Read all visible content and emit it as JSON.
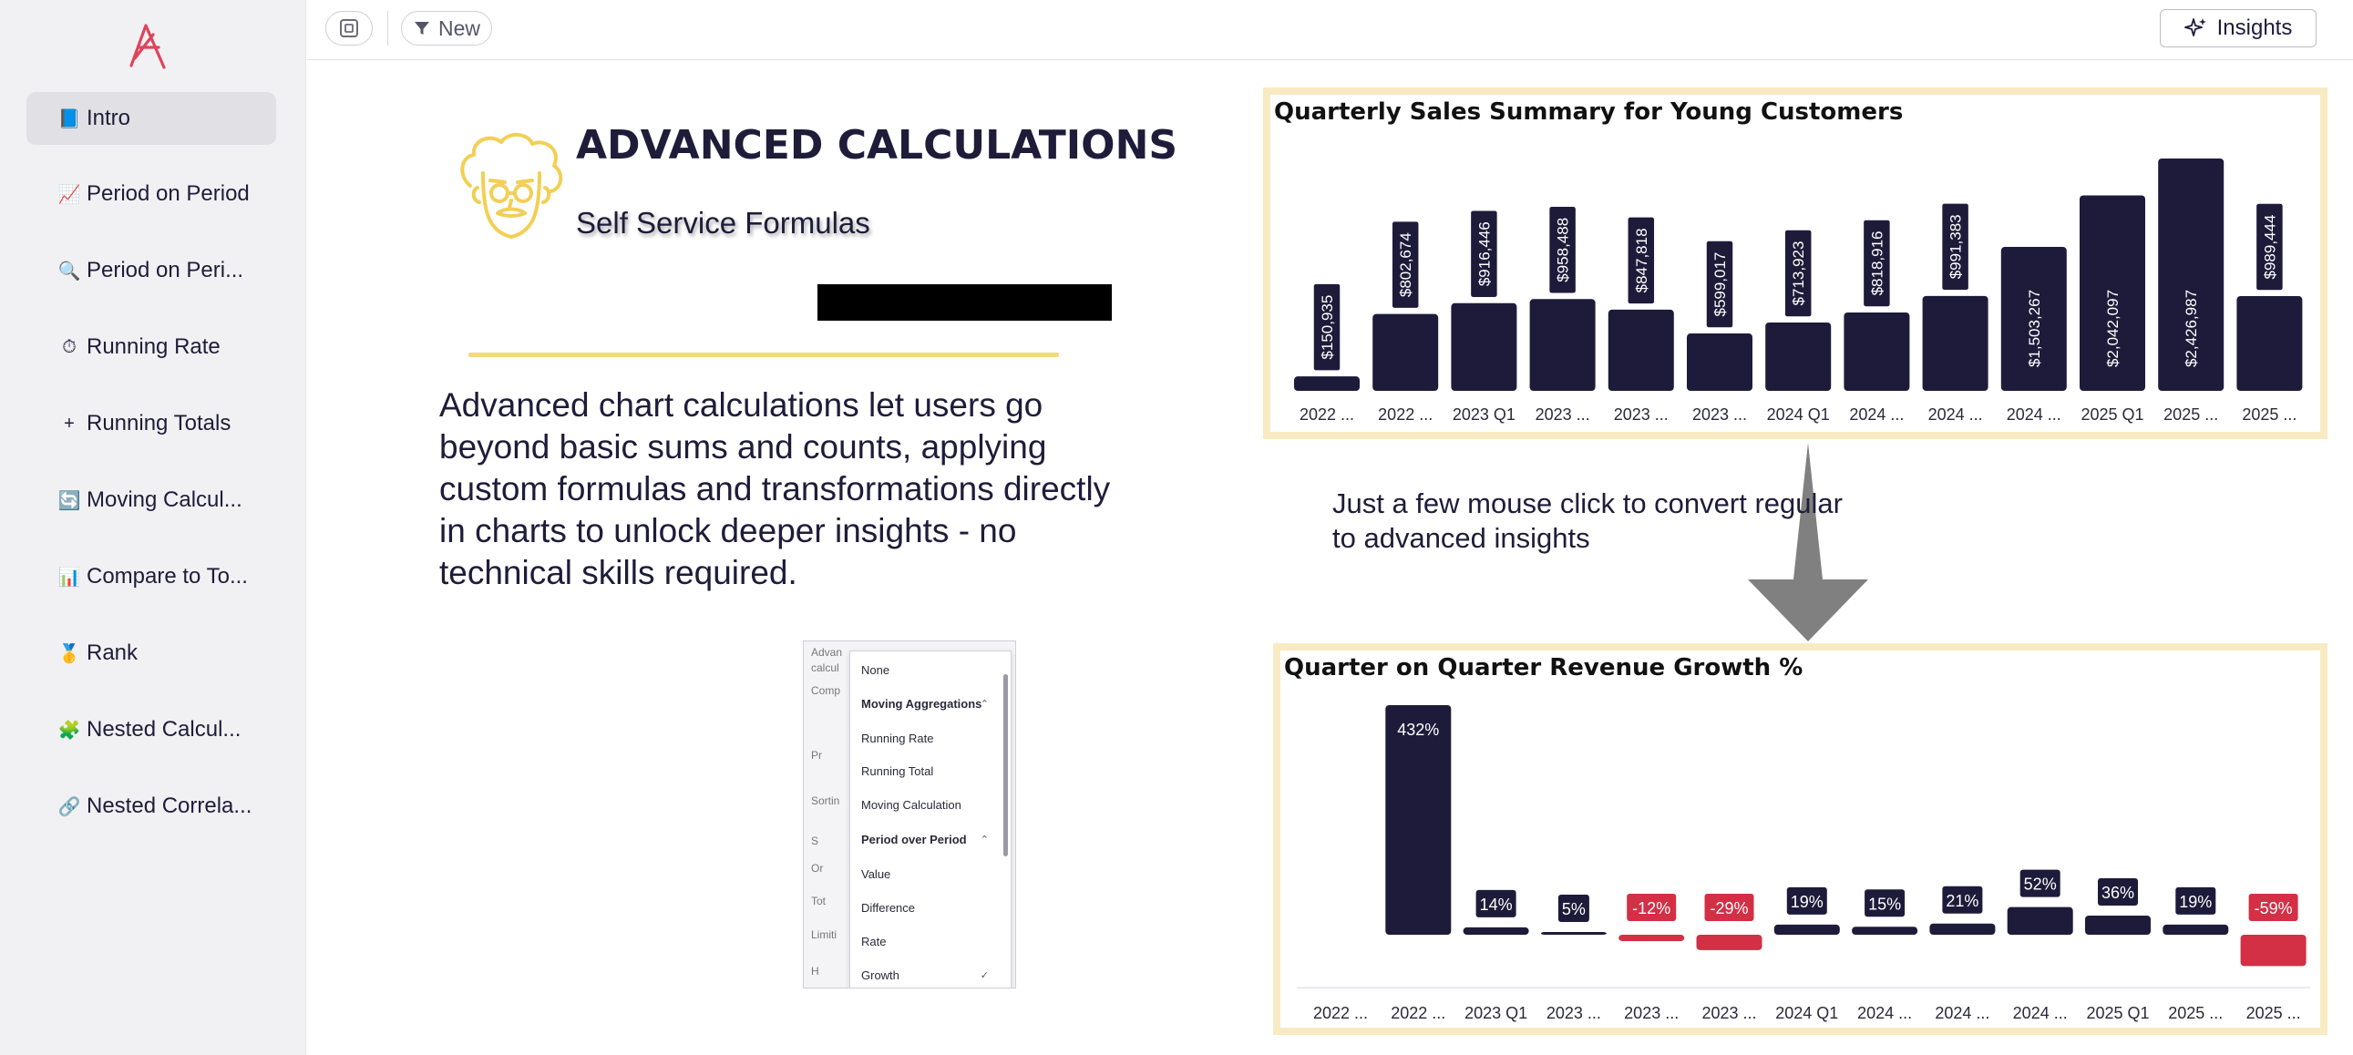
{
  "sidebar": {
    "items": [
      {
        "icon": "📘",
        "label": "Intro",
        "active": true
      },
      {
        "icon": "📈",
        "label": "Period on Period"
      },
      {
        "icon": "🔍",
        "label": "Period on Peri..."
      },
      {
        "icon": "⏱",
        "label": "Running Rate"
      },
      {
        "icon": "+",
        "label": "Running Totals"
      },
      {
        "icon": "🔄",
        "label": "Moving Calcul..."
      },
      {
        "icon": "📊",
        "label": "Compare to To..."
      },
      {
        "icon": "🥇",
        "label": "Rank"
      },
      {
        "icon": "🧩",
        "label": "Nested Calcul..."
      },
      {
        "icon": "🔗",
        "label": "Nested Correla..."
      }
    ]
  },
  "toolbar": {
    "new_label": "New",
    "insights_label": "Insights"
  },
  "intro": {
    "title": "ADVANCED CALCULATIONS",
    "subtitle": "Self Service Formulas",
    "description": "Advanced chart calculations let users go beyond basic sums and counts, applying custom formulas and transformations directly in charts to unlock deeper insights - no technical skills required."
  },
  "dropdown_screenshot": {
    "background_labels": [
      "Advan",
      "calcul",
      "Comp",
      "Pr",
      "Sortin",
      "S",
      "Or",
      "Tot",
      "Limiti",
      "H"
    ],
    "options": [
      {
        "label": "None"
      },
      {
        "label": "Moving Aggregations",
        "header": true
      },
      {
        "label": "Running Rate"
      },
      {
        "label": "Running Total"
      },
      {
        "label": "Moving Calculation"
      },
      {
        "label": "Period over Period",
        "header": true
      },
      {
        "label": "Value"
      },
      {
        "label": "Difference"
      },
      {
        "label": "Rate"
      },
      {
        "label": "Growth",
        "checked": true
      }
    ]
  },
  "callout": {
    "text": "Just a few mouse click to convert regular to advanced insights"
  },
  "colors": {
    "bar": "#1e1b3a",
    "negative": "#d32f45",
    "frame": "#f8eac3",
    "accent_gold": "#f5d97a"
  },
  "chart_data": [
    {
      "type": "bar",
      "title": "Quarterly Sales Summary for Young Customers",
      "categories": [
        "2022 ...",
        "2022 ...",
        "2023 Q1",
        "2023 ...",
        "2023 ...",
        "2023 ...",
        "2024 Q1",
        "2024 ...",
        "2024 ...",
        "2024 ...",
        "2025 Q1",
        "2025 ...",
        "2025 ..."
      ],
      "values": [
        150935,
        802674,
        916446,
        958488,
        847818,
        599017,
        713923,
        818916,
        991383,
        1503267,
        2042097,
        2426987,
        989444
      ],
      "labels": [
        "$150,935",
        "$802,674",
        "$916,446",
        "$958,488",
        "$847,818",
        "$599,017",
        "$713,923",
        "$818,916",
        "$991,383",
        "$1,503,267",
        "$2,042,097",
        "$2,426,987",
        "$989,444"
      ],
      "ylim": [
        0,
        2426987
      ],
      "grid": false
    },
    {
      "type": "bar",
      "title": "Quarter on Quarter Revenue Growth %",
      "categories": [
        "2022 ...",
        "2022 ...",
        "2023 Q1",
        "2023 ...",
        "2023 ...",
        "2023 ...",
        "2024 Q1",
        "2024 ...",
        "2024 ...",
        "2024 ...",
        "2025 Q1",
        "2025 ...",
        "2025 ..."
      ],
      "values": [
        null,
        432,
        14,
        5,
        -12,
        -29,
        19,
        15,
        21,
        52,
        36,
        19,
        -59
      ],
      "labels": [
        "",
        "432%",
        "14%",
        "5%",
        "-12%",
        "-29%",
        "19%",
        "15%",
        "21%",
        "52%",
        "36%",
        "19%",
        "-59%"
      ],
      "ylim": [
        -59,
        432
      ],
      "grid": false
    }
  ]
}
